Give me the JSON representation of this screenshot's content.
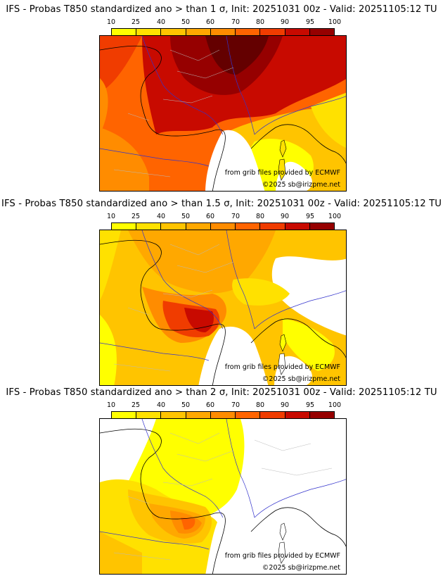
{
  "colorbar": {
    "levels": [
      "10",
      "25",
      "40",
      "50",
      "60",
      "70",
      "80",
      "90",
      "95",
      "100"
    ],
    "colors": [
      "#ffff00",
      "#ffe100",
      "#ffc400",
      "#ffa800",
      "#ff8c00",
      "#ff6400",
      "#f03c00",
      "#c80a00",
      "#960000",
      "#640000"
    ]
  },
  "palette": {
    "sea": "#ffffff",
    "coast": "#000000",
    "border": "#3333cc",
    "region": "#999999"
  },
  "credits": {
    "ecmwf": "from grib files provided by ECMWF",
    "copyright": "©2025 sb@irizpme.net"
  },
  "panels": [
    {
      "title": "IFS - Probas T850  standardized ano > than 1 σ, Init: 20251031 00z - Valid: 20251105:12 TU",
      "threshold": "1 σ"
    },
    {
      "title": "IFS - Probas T850  standardized ano > than 1.5 σ, Init: 20251031 00z - Valid: 20251105:12 TU",
      "threshold": "1.5 σ"
    },
    {
      "title": "IFS - Probas T850  standardized ano > than 2 σ, Init: 20251031 00z - Valid: 20251105:12 TU",
      "threshold": "2 σ"
    }
  ]
}
